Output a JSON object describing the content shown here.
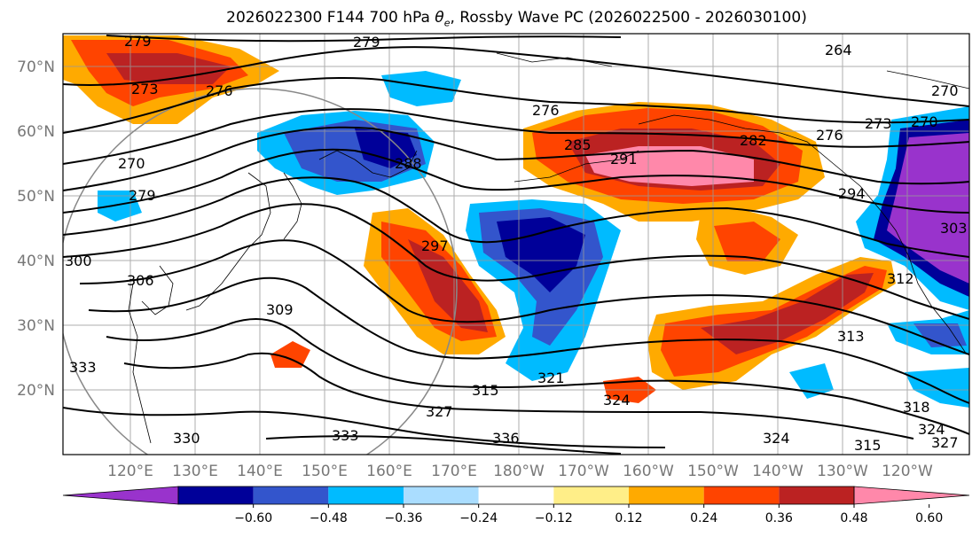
{
  "title_main": "2026022300 F144 700 hPa ",
  "title_theta": "θ",
  "title_sub": "e",
  "title_rest": ", Rossby Wave PC (2026022500 - 2026030100)",
  "lat_labels": [
    "70°N",
    "60°N",
    "50°N",
    "40°N",
    "30°N",
    "20°N"
  ],
  "lon_labels": [
    "120°E",
    "130°E",
    "140°E",
    "150°E",
    "160°E",
    "170°E",
    "180°W",
    "170°W",
    "160°W",
    "150°W",
    "140°W",
    "130°W",
    "120°W"
  ],
  "contour_labels": [
    "279",
    "279",
    "273",
    "276",
    "264",
    "270",
    "276",
    "273",
    "276",
    "270",
    "285",
    "288",
    "291",
    "282",
    "294",
    "279",
    "270",
    "297",
    "300",
    "303",
    "306",
    "309",
    "312",
    "313",
    "315",
    "321",
    "318",
    "324",
    "327",
    "324",
    "330",
    "333",
    "333",
    "336",
    "324",
    "315",
    "327"
  ],
  "colorbar": {
    "colors": [
      "#9933cc",
      "#000099",
      "#3355cc",
      "#00bbff",
      "#aaddff",
      "#ffffff",
      "#ffee88",
      "#ffaa00",
      "#ff4400",
      "#bb2222",
      "#ff88aa"
    ],
    "ticks": [
      "−0.60",
      "−0.48",
      "−0.36",
      "−0.24",
      "−0.12",
      "0.12",
      "0.24",
      "0.36",
      "0.48",
      "0.60"
    ]
  }
}
